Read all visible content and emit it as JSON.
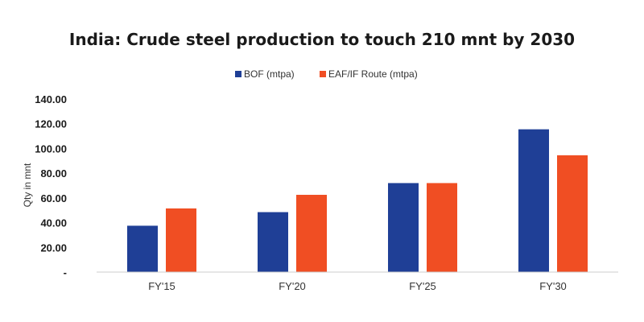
{
  "chart_data": {
    "type": "bar",
    "title": "India: Crude steel production to touch 210 mnt by 2030",
    "ylabel": "Qty in mnt",
    "xlabel": "",
    "categories": [
      "FY'15",
      "FY'20",
      "FY'25",
      "FY'30"
    ],
    "series": [
      {
        "name": "BOF (mtpa)",
        "color": "#1f3f96",
        "values": [
          37.5,
          48.5,
          72,
          115.5
        ]
      },
      {
        "name": "EAF/IF Route (mtpa)",
        "color": "#f04e23",
        "values": [
          51.5,
          62.5,
          72,
          94.5
        ]
      }
    ],
    "ylim": [
      0,
      140
    ],
    "yticks": [
      {
        "value": 0,
        "label": "-"
      },
      {
        "value": 20,
        "label": "20.00"
      },
      {
        "value": 40,
        "label": "40.00"
      },
      {
        "value": 60,
        "label": "60.00"
      },
      {
        "value": 80,
        "label": "80.00"
      },
      {
        "value": 100,
        "label": "100.00"
      },
      {
        "value": 120,
        "label": "120.00"
      },
      {
        "value": 140,
        "label": "140.00"
      }
    ],
    "grid": false,
    "legend": "top-center"
  }
}
